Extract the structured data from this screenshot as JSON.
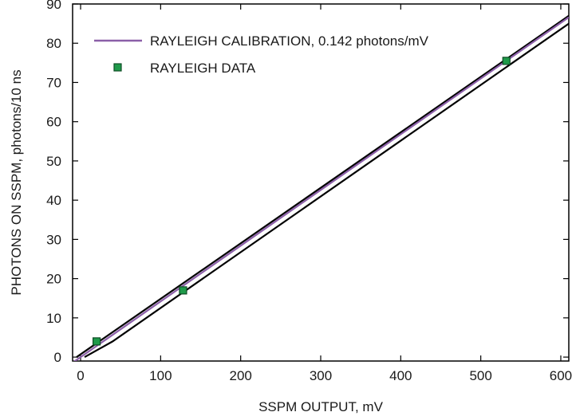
{
  "chart_data": {
    "type": "line",
    "title": "",
    "xlabel": "SSPM OUTPUT, mV",
    "ylabel": "PHOTONS ON SSPM, photons/10 ns",
    "xlim": [
      -10,
      610
    ],
    "ylim": [
      -1,
      90
    ],
    "xticks": [
      0,
      100,
      200,
      300,
      400,
      500,
      600
    ],
    "yticks": [
      0,
      10,
      20,
      30,
      40,
      50,
      60,
      70,
      80,
      90
    ],
    "grid": false,
    "legend_position": "top-left",
    "series": [
      {
        "name": "RAYLEIGH CALIBRATION, 0.142 photons/mV",
        "kind": "line",
        "color": "#8b5fa8",
        "x": [
          -10,
          610
        ],
        "y": [
          -1.42,
          86.62
        ]
      },
      {
        "name": "RAYLEIGH DATA",
        "kind": "scatter",
        "color": "#1f9a4a",
        "x": [
          20,
          128,
          532
        ],
        "y": [
          4,
          17,
          75.5
        ]
      }
    ],
    "error_band": {
      "color": "#000000",
      "upper": {
        "x": [
          -5,
          610
        ],
        "y": [
          0,
          87
        ]
      },
      "lower": {
        "x": [
          5,
          40,
          610
        ],
        "y": [
          0,
          4,
          85
        ]
      }
    }
  }
}
